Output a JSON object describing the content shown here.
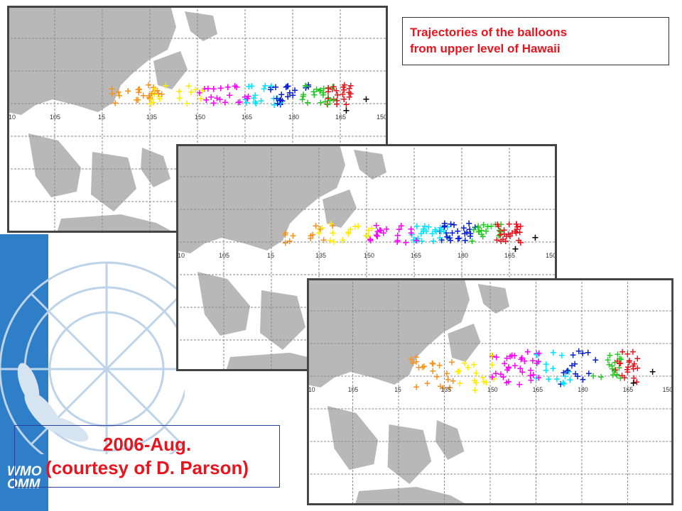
{
  "title": "Trajectories  of the balloons\nfrom upper level of Hawaii",
  "caption": {
    "date": "2006-Aug.",
    "credit": "(courtesy of D. Parson)"
  },
  "logo": {
    "line1": "WMO",
    "line2": "OMM"
  },
  "maps": [
    {
      "id": "map-1",
      "lon_labels": [
        "10",
        "105",
        "15",
        "135",
        "150",
        "165",
        "180",
        "165",
        "150"
      ]
    },
    {
      "id": "map-2",
      "lon_labels": [
        "10",
        "105",
        "15",
        "135",
        "150",
        "165",
        "180",
        "165",
        "150"
      ]
    },
    {
      "id": "map-3",
      "lon_labels": [
        "10",
        "105",
        "15",
        "135",
        "150",
        "165",
        "180",
        "165",
        "150"
      ]
    }
  ],
  "colors": {
    "land": "#b8b8b8",
    "grid": "#8a8a8a",
    "series": [
      "#f7931e",
      "#ffeb00",
      "#ff00ff",
      "#00e5ff",
      "#0a1fcf",
      "#22cc22",
      "#e8141e",
      "#000000"
    ],
    "accent_text": "#e8141e",
    "wmo_blue": "#2e7fc7"
  },
  "icons": {
    "emblem": "un-wreath-globe-icon"
  }
}
